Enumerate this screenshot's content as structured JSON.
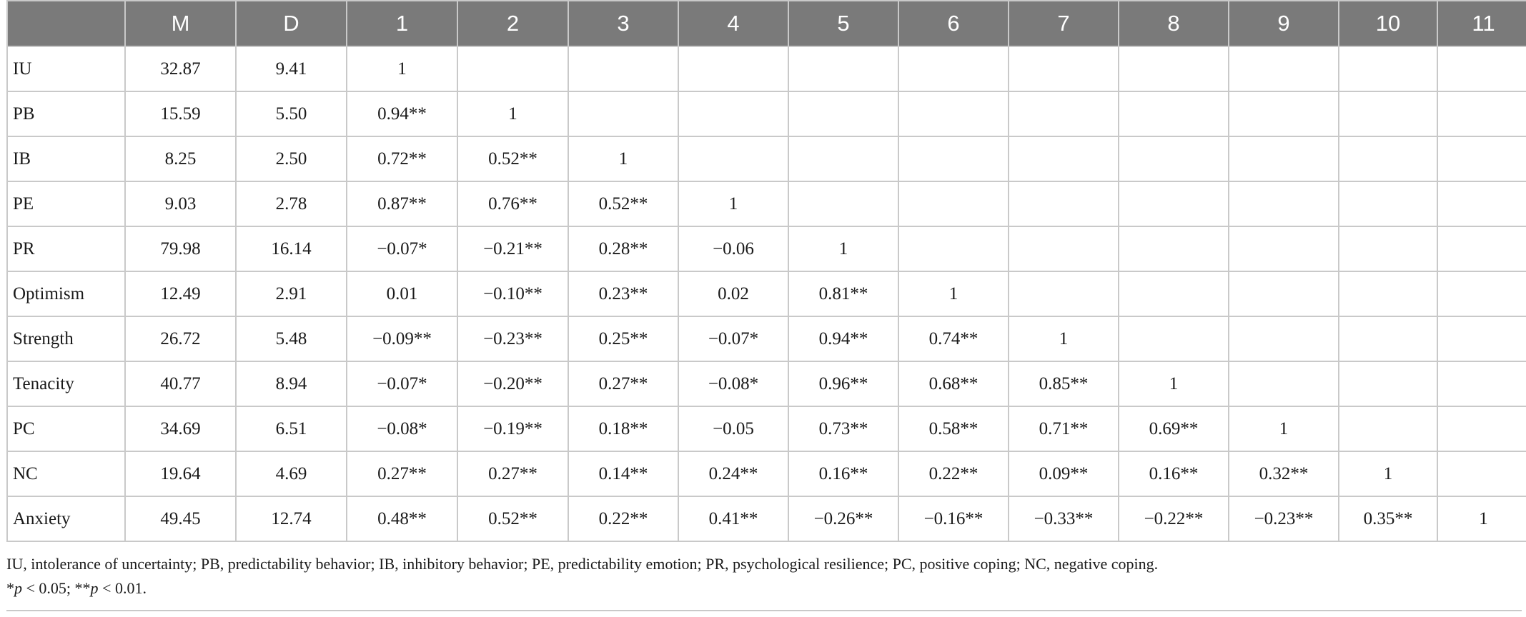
{
  "table": {
    "columns": [
      "",
      "M",
      "D",
      "1",
      "2",
      "3",
      "4",
      "5",
      "6",
      "7",
      "8",
      "9",
      "10",
      "11"
    ],
    "rows": [
      {
        "label": "IU",
        "cells": [
          "32.87",
          "9.41",
          "1",
          "",
          "",
          "",
          "",
          "",
          "",
          "",
          "",
          "",
          ""
        ]
      },
      {
        "label": "PB",
        "cells": [
          "15.59",
          "5.50",
          "0.94**",
          "1",
          "",
          "",
          "",
          "",
          "",
          "",
          "",
          "",
          ""
        ]
      },
      {
        "label": "IB",
        "cells": [
          "8.25",
          "2.50",
          "0.72**",
          "0.52**",
          "1",
          "",
          "",
          "",
          "",
          "",
          "",
          "",
          ""
        ]
      },
      {
        "label": "PE",
        "cells": [
          "9.03",
          "2.78",
          "0.87**",
          "0.76**",
          "0.52**",
          "1",
          "",
          "",
          "",
          "",
          "",
          "",
          ""
        ]
      },
      {
        "label": "PR",
        "cells": [
          "79.98",
          "16.14",
          "−0.07*",
          "−0.21**",
          "0.28**",
          "−0.06",
          "1",
          "",
          "",
          "",
          "",
          "",
          ""
        ]
      },
      {
        "label": "Optimism",
        "cells": [
          "12.49",
          "2.91",
          "0.01",
          "−0.10**",
          "0.23**",
          "0.02",
          "0.81**",
          "1",
          "",
          "",
          "",
          "",
          ""
        ]
      },
      {
        "label": "Strength",
        "cells": [
          "26.72",
          "5.48",
          "−0.09**",
          "−0.23**",
          "0.25**",
          "−0.07*",
          "0.94**",
          "0.74**",
          "1",
          "",
          "",
          "",
          ""
        ]
      },
      {
        "label": "Tenacity",
        "cells": [
          "40.77",
          "8.94",
          "−0.07*",
          "−0.20**",
          "0.27**",
          "−0.08*",
          "0.96**",
          "0.68**",
          "0.85**",
          "1",
          "",
          "",
          ""
        ]
      },
      {
        "label": "PC",
        "cells": [
          "34.69",
          "6.51",
          "−0.08*",
          "−0.19**",
          "0.18**",
          "−0.05",
          "0.73**",
          "0.58**",
          "0.71**",
          "0.69**",
          "1",
          "",
          ""
        ]
      },
      {
        "label": "NC",
        "cells": [
          "19.64",
          "4.69",
          "0.27**",
          "0.27**",
          "0.14**",
          "0.24**",
          "0.16**",
          "0.22**",
          "0.09**",
          "0.16**",
          "0.32**",
          "1",
          ""
        ]
      },
      {
        "label": "Anxiety",
        "cells": [
          "49.45",
          "12.74",
          "0.48**",
          "0.52**",
          "0.22**",
          "0.41**",
          "−0.26**",
          "−0.16**",
          "−0.33**",
          "−0.22**",
          "−0.23**",
          "0.35**",
          "1"
        ]
      }
    ]
  },
  "footnote": {
    "abbreviations": "IU, intolerance of uncertainty; PB, predictability behavior; IB, inhibitory behavior; PE, predictability emotion; PR, psychological resilience; PC, positive coping; NC, negative coping.",
    "sig_1_mark": "*",
    "sig_1_var": "p",
    "sig_1_rest": " < 0.05; ",
    "sig_2_mark": "**",
    "sig_2_var": "p",
    "sig_2_rest": " < 0.01."
  },
  "colors": {
    "header_bg": "#7a7a7a",
    "header_text": "#ffffff",
    "grid": "#c9c9c9",
    "text": "#1a1a1a"
  }
}
